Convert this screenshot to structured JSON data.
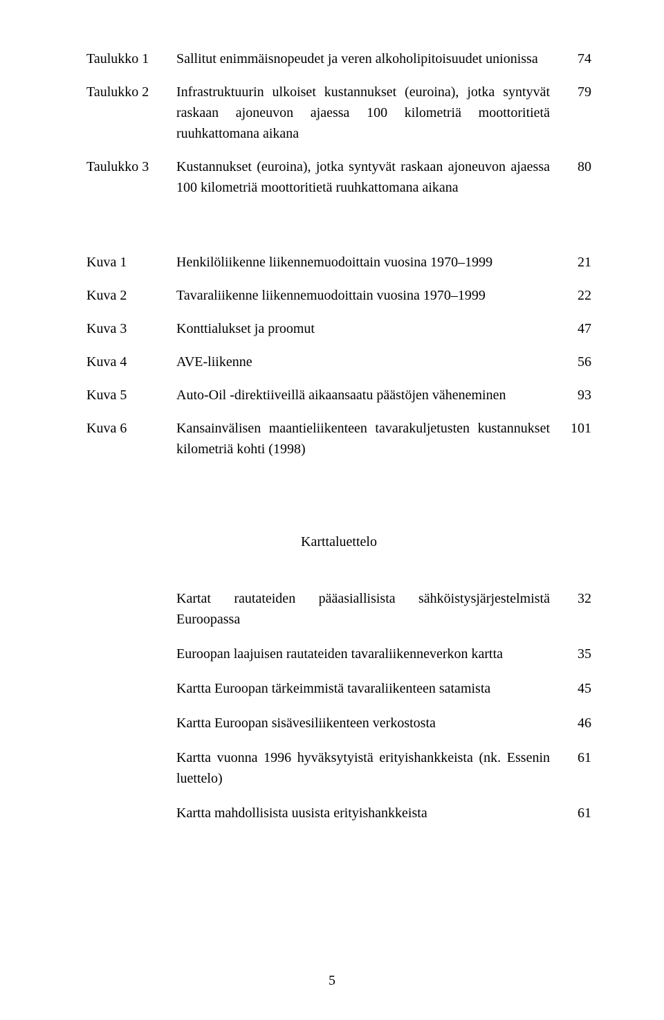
{
  "tables": [
    {
      "label": "Taulukko 1",
      "desc": "Sallitut enimmäisnopeudet ja veren alkoholipitoisuudet unionissa",
      "page": "74"
    },
    {
      "label": "Taulukko 2",
      "desc": "Infrastruktuurin ulkoiset kustannukset (euroina), jotka syntyvät raskaan ajoneuvon ajaessa 100 kilometriä moottoritietä ruuhkattomana aikana",
      "page": "79"
    },
    {
      "label": "Taulukko 3",
      "desc": "Kustannukset (euroina), jotka syntyvät raskaan ajoneuvon ajaessa 100 kilometriä moottoritietä ruuhkattomana aikana",
      "page": "80"
    }
  ],
  "figures": [
    {
      "label": "Kuva 1",
      "desc": "Henkilöliikenne liikennemuodoittain vuosina 1970–1999",
      "page": "21"
    },
    {
      "label": "Kuva 2",
      "desc": "Tavaraliikenne liikennemuodoittain vuosina 1970–1999",
      "page": "22"
    },
    {
      "label": "Kuva 3",
      "desc": "Konttialukset ja proomut",
      "page": "47"
    },
    {
      "label": "Kuva 4",
      "desc": "AVE-liikenne",
      "page": "56"
    },
    {
      "label": "Kuva 5",
      "desc": "Auto-Oil -direktiiveillä aikaansaatu päästöjen väheneminen",
      "page": "93"
    },
    {
      "label": "Kuva 6",
      "desc": "Kansainvälisen maantieliikenteen tavarakuljetusten kustannukset kilometriä kohti (1998)",
      "page": "101"
    }
  ],
  "map_heading": "Karttaluettelo",
  "maps": [
    {
      "desc": "Kartat rautateiden pääasiallisista sähköistysjärjestelmistä Euroopassa",
      "page": "32"
    },
    {
      "desc": "Euroopan laajuisen rautateiden tavaraliikenneverkon kartta",
      "page": "35"
    },
    {
      "desc": "Kartta Euroopan tärkeimmistä tavaraliikenteen satamista",
      "page": "45"
    },
    {
      "desc": "Kartta Euroopan sisävesiliikenteen verkostosta",
      "page": "46"
    },
    {
      "desc": "Kartta vuonna 1996 hyväksytyistä erityishankkeista (nk. Essenin luettelo)",
      "page": "61"
    },
    {
      "desc": "Kartta mahdollisista uusista erityishankkeista",
      "page": "61"
    }
  ],
  "page_number": "5"
}
